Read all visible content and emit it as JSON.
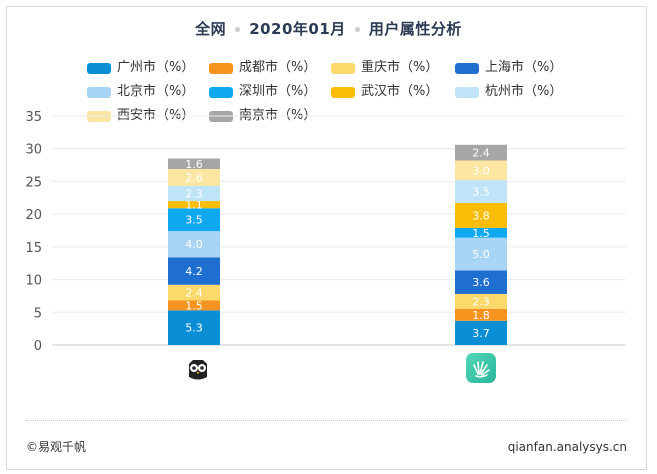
{
  "title": {
    "scope": "全网",
    "period": "2020年01月",
    "topic": "用户属性分析"
  },
  "footer": {
    "source": "©易观千帆",
    "site": "qianfan.analysys.cn"
  },
  "app_icons": [
    {
      "name": "owl-app-icon",
      "color": "#222222"
    },
    {
      "name": "green-app-icon",
      "color": "#2bb59a"
    }
  ],
  "chart_data": {
    "type": "bar",
    "stacked": true,
    "categories": [
      "",
      ""
    ],
    "ylim": [
      0,
      35
    ],
    "yticks": [
      0,
      5,
      10,
      15,
      20,
      25,
      30,
      35
    ],
    "grid": true,
    "legend_position": "top",
    "series": [
      {
        "name": "广州市（%）",
        "color": "#0a8fd6",
        "values": [
          5.3,
          3.7
        ]
      },
      {
        "name": "成都市（%）",
        "color": "#f7931e",
        "values": [
          1.5,
          1.8
        ]
      },
      {
        "name": "重庆市（%）",
        "color": "#fcd96a",
        "values": [
          2.4,
          2.3
        ]
      },
      {
        "name": "上海市（%）",
        "color": "#1f6fd1",
        "values": [
          4.2,
          3.6
        ]
      },
      {
        "name": "北京市（%）",
        "color": "#a8d4f5",
        "values": [
          4.0,
          5.0
        ]
      },
      {
        "name": "深圳市（%）",
        "color": "#10a8f0",
        "values": [
          3.5,
          1.5
        ]
      },
      {
        "name": "武汉市（%）",
        "color": "#fbbd08",
        "values": [
          1.1,
          3.8
        ]
      },
      {
        "name": "杭州市（%）",
        "color": "#bfe3f7",
        "values": [
          2.3,
          3.5
        ]
      },
      {
        "name": "西安市（%）",
        "color": "#fde6a3",
        "values": [
          2.6,
          3.0
        ]
      },
      {
        "name": "南京市（%）",
        "color": "#a6a6a6",
        "values": [
          1.6,
          2.4
        ]
      }
    ]
  }
}
